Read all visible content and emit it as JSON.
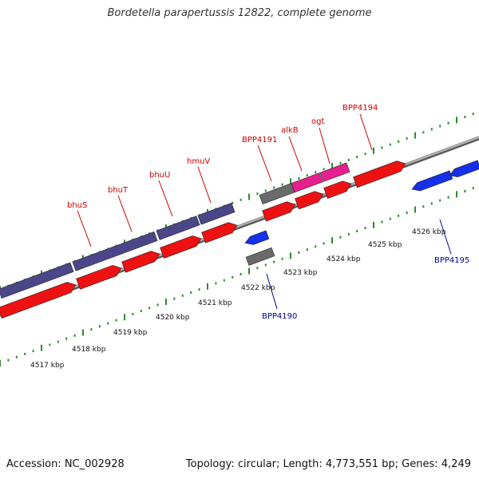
{
  "title": "Bordetella parapertussis 12822, complete genome",
  "footer": {
    "accession": "Accession: NC_002928",
    "topology": "Topology: circular; Length: 4,773,551 bp; Genes: 4,249"
  },
  "colors": {
    "backbone": "#8c8c8c",
    "dots": "#2e8b2e",
    "forward_label": "#cc0000",
    "reverse_label": "#000099",
    "leader": "#cc0000",
    "reverse_leader": "#000099"
  },
  "scale_ticks": [
    {
      "label": "4517 kbp"
    },
    {
      "label": "4518 kbp"
    },
    {
      "label": "4519 kbp"
    },
    {
      "label": "4520 kbp"
    },
    {
      "label": "4521 kbp"
    },
    {
      "label": "4522 kbp"
    },
    {
      "label": "4523 kbp"
    },
    {
      "label": "4524 kbp"
    },
    {
      "label": "4525 kbp"
    },
    {
      "label": "4526 kbp"
    }
  ],
  "gene_labels": [
    {
      "text": "bhuS",
      "strand": "forward"
    },
    {
      "text": "bhuT",
      "strand": "forward"
    },
    {
      "text": "bhuU",
      "strand": "forward"
    },
    {
      "text": "hmuV",
      "strand": "forward"
    },
    {
      "text": "BPP4191",
      "strand": "forward"
    },
    {
      "text": "alkB",
      "strand": "forward"
    },
    {
      "text": "ogt",
      "strand": "forward"
    },
    {
      "text": "BPP4194",
      "strand": "forward"
    },
    {
      "text": "BPP4190",
      "strand": "reverse"
    },
    {
      "text": "BPP4195",
      "strand": "reverse"
    }
  ]
}
